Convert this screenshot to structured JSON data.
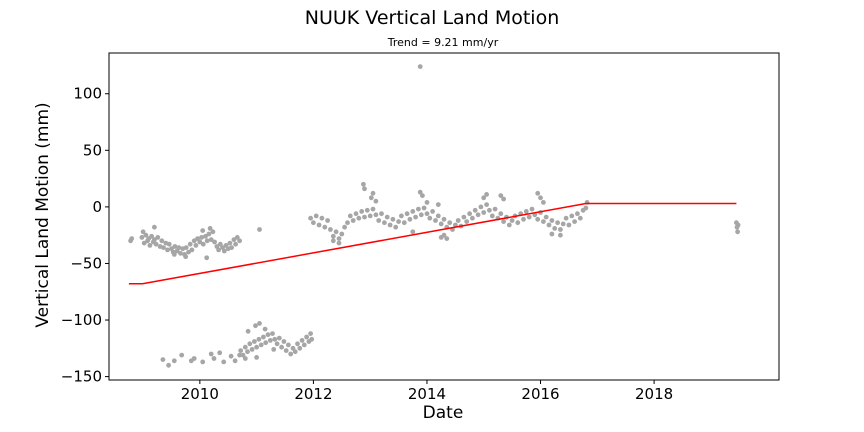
{
  "chart_data": {
    "type": "scatter",
    "title": "NUUK Vertical Land Motion",
    "subtitle": "Trend = 9.21 mm/yr",
    "xlabel": "Date",
    "ylabel": "Vertical Land Motion (mm)",
    "xlim": [
      2008.4,
      2020.2
    ],
    "ylim": [
      -153,
      136
    ],
    "xticks": [
      2010,
      2012,
      2014,
      2016,
      2018
    ],
    "yticks": [
      100,
      50,
      0,
      -50,
      -100,
      -150
    ],
    "grid": false,
    "colors": {
      "points": "#a6a6a6",
      "trend": "#ff0000"
    },
    "series": [
      {
        "type": "scatter",
        "points": [
          [
            2008.78,
            -30
          ],
          [
            2008.8,
            -28
          ],
          [
            2008.98,
            -27
          ],
          [
            2009.0,
            -22
          ],
          [
            2009.02,
            -32
          ],
          [
            2009.05,
            -25
          ],
          [
            2009.08,
            -30
          ],
          [
            2009.1,
            -28
          ],
          [
            2009.12,
            -34
          ],
          [
            2009.15,
            -26
          ],
          [
            2009.18,
            -31
          ],
          [
            2009.2,
            -29
          ],
          [
            2009.23,
            -33
          ],
          [
            2009.26,
            -27
          ],
          [
            2009.3,
            -35
          ],
          [
            2009.33,
            -30
          ],
          [
            2009.36,
            -36
          ],
          [
            2009.4,
            -32
          ],
          [
            2009.43,
            -38
          ],
          [
            2009.46,
            -33
          ],
          [
            2009.5,
            -37
          ],
          [
            2009.53,
            -40
          ],
          [
            2009.56,
            -35
          ],
          [
            2009.6,
            -39
          ],
          [
            2009.63,
            -36
          ],
          [
            2009.66,
            -41
          ],
          [
            2009.7,
            -37
          ],
          [
            2009.73,
            -42
          ],
          [
            2009.76,
            -36
          ],
          [
            2009.8,
            -40
          ],
          [
            2009.83,
            -33
          ],
          [
            2009.86,
            -38
          ],
          [
            2009.9,
            -30
          ],
          [
            2009.93,
            -34
          ],
          [
            2009.96,
            -28
          ],
          [
            2010.0,
            -31
          ],
          [
            2010.03,
            -27
          ],
          [
            2010.06,
            -33
          ],
          [
            2010.1,
            -26
          ],
          [
            2010.13,
            -30
          ],
          [
            2010.16,
            -24
          ],
          [
            2010.2,
            -29
          ],
          [
            2010.23,
            -22
          ],
          [
            2010.26,
            -31
          ],
          [
            2010.3,
            -35
          ],
          [
            2010.33,
            -38
          ],
          [
            2010.36,
            -33
          ],
          [
            2010.4,
            -36
          ],
          [
            2010.43,
            -39
          ],
          [
            2010.46,
            -34
          ],
          [
            2010.5,
            -37
          ],
          [
            2010.53,
            -32
          ],
          [
            2010.56,
            -36
          ],
          [
            2010.6,
            -29
          ],
          [
            2010.63,
            -33
          ],
          [
            2010.66,
            -27
          ],
          [
            2010.7,
            -30
          ],
          [
            2010.12,
            -45
          ],
          [
            2009.2,
            -18
          ],
          [
            2009.55,
            -42
          ],
          [
            2009.75,
            -44
          ],
          [
            2010.05,
            -21
          ],
          [
            2010.18,
            -19
          ],
          [
            2009.35,
            -135
          ],
          [
            2009.45,
            -140
          ],
          [
            2009.55,
            -136
          ],
          [
            2009.68,
            -131
          ],
          [
            2009.85,
            -136
          ],
          [
            2009.9,
            -134
          ],
          [
            2010.05,
            -137
          ],
          [
            2010.2,
            -130
          ],
          [
            2010.25,
            -134
          ],
          [
            2010.35,
            -129
          ],
          [
            2010.42,
            -137
          ],
          [
            2010.55,
            -132
          ],
          [
            2010.62,
            -136
          ],
          [
            2010.7,
            -131
          ],
          [
            2010.8,
            -134
          ],
          [
            2010.72,
            -127
          ],
          [
            2010.76,
            -131
          ],
          [
            2010.8,
            -124
          ],
          [
            2010.84,
            -128
          ],
          [
            2010.88,
            -121
          ],
          [
            2010.92,
            -126
          ],
          [
            2010.96,
            -119
          ],
          [
            2011.0,
            -124
          ],
          [
            2011.04,
            -117
          ],
          [
            2011.08,
            -122
          ],
          [
            2011.12,
            -115
          ],
          [
            2011.16,
            -120
          ],
          [
            2011.2,
            -113
          ],
          [
            2011.24,
            -118
          ],
          [
            2011.28,
            -112
          ],
          [
            2011.32,
            -117
          ],
          [
            2011.36,
            -121
          ],
          [
            2011.4,
            -116
          ],
          [
            2011.44,
            -124
          ],
          [
            2011.48,
            -119
          ],
          [
            2011.52,
            -127
          ],
          [
            2011.56,
            -122
          ],
          [
            2011.6,
            -130
          ],
          [
            2011.64,
            -125
          ],
          [
            2011.68,
            -128
          ],
          [
            2011.72,
            -121
          ],
          [
            2011.76,
            -125
          ],
          [
            2011.8,
            -118
          ],
          [
            2011.84,
            -122
          ],
          [
            2011.88,
            -115
          ],
          [
            2011.92,
            -119
          ],
          [
            2011.95,
            -112
          ],
          [
            2011.97,
            -117
          ],
          [
            2010.98,
            -105
          ],
          [
            2011.05,
            -103
          ],
          [
            2011.15,
            -108
          ],
          [
            2010.85,
            -110
          ],
          [
            2011.0,
            -133
          ],
          [
            2011.3,
            -126
          ],
          [
            2011.05,
            -20
          ],
          [
            2011.95,
            -10
          ],
          [
            2012.0,
            -14
          ],
          [
            2012.05,
            -8
          ],
          [
            2012.1,
            -16
          ],
          [
            2012.15,
            -10
          ],
          [
            2012.2,
            -18
          ],
          [
            2012.25,
            -12
          ],
          [
            2012.3,
            -20
          ],
          [
            2012.35,
            -26
          ],
          [
            2012.4,
            -22
          ],
          [
            2012.45,
            -28
          ],
          [
            2012.5,
            -24
          ],
          [
            2012.55,
            -18
          ],
          [
            2012.6,
            -14
          ],
          [
            2012.65,
            -8
          ],
          [
            2012.7,
            -12
          ],
          [
            2012.75,
            -6
          ],
          [
            2012.8,
            -10
          ],
          [
            2012.85,
            -4
          ],
          [
            2012.9,
            -9
          ],
          [
            2012.95,
            -3
          ],
          [
            2013.0,
            -8
          ],
          [
            2013.05,
            -2
          ],
          [
            2013.1,
            -7
          ],
          [
            2013.15,
            -12
          ],
          [
            2013.2,
            -6
          ],
          [
            2013.25,
            -14
          ],
          [
            2013.3,
            -9
          ],
          [
            2013.35,
            -16
          ],
          [
            2013.4,
            -11
          ],
          [
            2013.45,
            -18
          ],
          [
            2013.5,
            -13
          ],
          [
            2013.55,
            -8
          ],
          [
            2013.6,
            -14
          ],
          [
            2013.65,
            -6
          ],
          [
            2013.7,
            -11
          ],
          [
            2013.75,
            -4
          ],
          [
            2013.8,
            -9
          ],
          [
            2013.85,
            -2
          ],
          [
            2013.9,
            -7
          ],
          [
            2013.95,
            -1
          ],
          [
            2014.0,
            -6
          ],
          [
            2014.05,
            -10
          ],
          [
            2014.1,
            -4
          ],
          [
            2014.15,
            -12
          ],
          [
            2014.2,
            -8
          ],
          [
            2014.25,
            -15
          ],
          [
            2014.3,
            -11
          ],
          [
            2014.35,
            -18
          ],
          [
            2014.4,
            -14
          ],
          [
            2014.45,
            -20
          ],
          [
            2014.5,
            -16
          ],
          [
            2014.55,
            -12
          ],
          [
            2014.6,
            -17
          ],
          [
            2014.65,
            -9
          ],
          [
            2014.7,
            -13
          ],
          [
            2014.75,
            -6
          ],
          [
            2014.8,
            -10
          ],
          [
            2014.85,
            -3
          ],
          [
            2014.9,
            -7
          ],
          [
            2014.95,
            0
          ],
          [
            2015.0,
            -5
          ],
          [
            2015.05,
            2
          ],
          [
            2015.1,
            -3
          ],
          [
            2015.15,
            -8
          ],
          [
            2015.2,
            -2
          ],
          [
            2015.25,
            -10
          ],
          [
            2015.3,
            -6
          ],
          [
            2015.35,
            -13
          ],
          [
            2015.4,
            -9
          ],
          [
            2015.45,
            -16
          ],
          [
            2015.5,
            -12
          ],
          [
            2015.55,
            -8
          ],
          [
            2015.6,
            -14
          ],
          [
            2015.65,
            -6
          ],
          [
            2015.7,
            -11
          ],
          [
            2015.75,
            -4
          ],
          [
            2015.8,
            -9
          ],
          [
            2015.85,
            -2
          ],
          [
            2015.9,
            -7
          ],
          [
            2015.95,
            -11
          ],
          [
            2016.0,
            -5
          ],
          [
            2016.05,
            -13
          ],
          [
            2016.1,
            -9
          ],
          [
            2016.15,
            -16
          ],
          [
            2016.2,
            -12
          ],
          [
            2016.25,
            -19
          ],
          [
            2016.3,
            -14
          ],
          [
            2016.35,
            -20
          ],
          [
            2016.4,
            -15
          ],
          [
            2016.45,
            -10
          ],
          [
            2016.5,
            -16
          ],
          [
            2016.55,
            -8
          ],
          [
            2016.6,
            -13
          ],
          [
            2016.65,
            -6
          ],
          [
            2016.7,
            -10
          ],
          [
            2016.75,
            -3
          ],
          [
            2016.8,
            -1
          ],
          [
            2016.82,
            4
          ],
          [
            2012.88,
            20
          ],
          [
            2012.9,
            16
          ],
          [
            2013.02,
            8
          ],
          [
            2013.05,
            12
          ],
          [
            2013.1,
            5
          ],
          [
            2013.88,
            13
          ],
          [
            2013.92,
            10
          ],
          [
            2014.0,
            4
          ],
          [
            2014.2,
            2
          ],
          [
            2014.3,
            -25
          ],
          [
            2014.35,
            -28
          ],
          [
            2015.0,
            8
          ],
          [
            2015.05,
            11
          ],
          [
            2015.3,
            10
          ],
          [
            2015.35,
            7
          ],
          [
            2015.95,
            12
          ],
          [
            2016.0,
            8
          ],
          [
            2016.05,
            4
          ],
          [
            2016.2,
            -24
          ],
          [
            2016.35,
            -25
          ],
          [
            2012.35,
            -30
          ],
          [
            2012.45,
            -32
          ],
          [
            2013.75,
            -22
          ],
          [
            2014.25,
            -27
          ],
          [
            2013.88,
            124
          ],
          [
            2019.45,
            -14
          ],
          [
            2019.46,
            -18
          ],
          [
            2019.47,
            -22
          ],
          [
            2019.48,
            -16
          ]
        ]
      },
      {
        "type": "line",
        "points": [
          [
            2008.75,
            -68
          ],
          [
            2008.99,
            -68
          ],
          [
            2016.8,
            3
          ],
          [
            2019.45,
            3
          ]
        ]
      }
    ]
  }
}
